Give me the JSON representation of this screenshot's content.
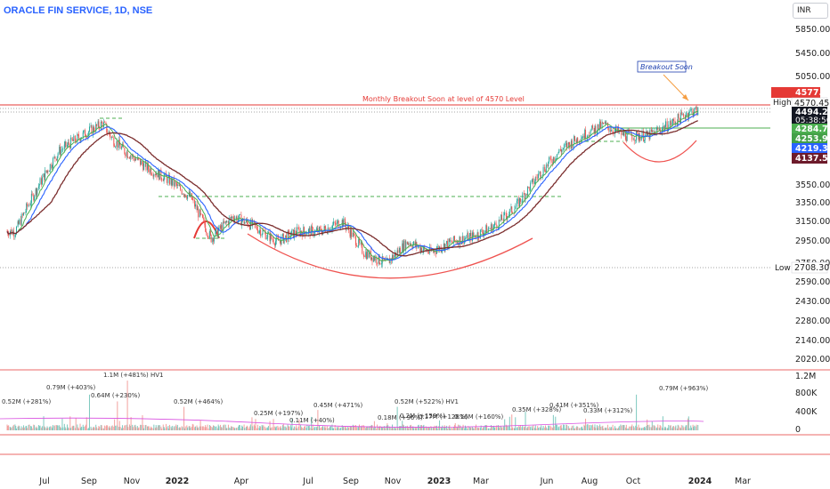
{
  "header": {
    "title": "ORACLE FIN SERVICE, 1D, NSE",
    "currency": "INR"
  },
  "price_axis_labels": [
    "5850.00",
    "5450.00",
    "5050.00",
    "3550.00",
    "3350.00",
    "3150.00",
    "2950.00",
    "2750.00",
    "2590.00",
    "2430.00",
    "2280.00",
    "2140.00",
    "2020.00"
  ],
  "volume_axis_labels": [
    "1.2M",
    "800K",
    "400K",
    "0"
  ],
  "time_axis_labels": [
    "Jul",
    "Sep",
    "Nov",
    "2022",
    "Apr",
    "Jul",
    "Sep",
    "Nov",
    "2023",
    "Mar",
    "Jun",
    "Aug",
    "Oct",
    "2024",
    "Mar"
  ],
  "tags": {
    "t1": "4577.05",
    "high_label": "High",
    "high_value": "4570.45",
    "last_price": "4494.25",
    "countdown": "05:38:56",
    "ma1": "4284.75",
    "ma2": "4253.95",
    "ma3": "4219.30",
    "ma4": "4137.57",
    "low_label": "Low",
    "low_value": "2708.30"
  },
  "annotations": {
    "breakout_line": "Monthly Breakout Soon at level of 4570 Level",
    "breakout_box": "Breakout Soon"
  },
  "volume_labels": [
    "0.52M (+281%)",
    "0.79M (+403%)",
    "1.1M (+481%) HV1",
    "0.64M (+230%)",
    "0.52M (+464%)",
    "0.25M (+197%)",
    "0.11M (+40%)",
    "0.45M (+471%)",
    "0.52M (+522%) HV1",
    "0.18M (+96%)",
    "0.2M (+159%)",
    "0.17M (+128%)",
    "0.16M (+160%)",
    "0.35M (+328%)",
    "0.41M (+351%)",
    "0.33M (+312%)",
    "0.79M (+963%)"
  ],
  "colors": {
    "up": "#26a69a",
    "down": "#ef5350",
    "ma_fast": "#4caf50",
    "ma_mid": "#2962ff",
    "ma_slow": "#7b2d2d",
    "accent": "#2962ff"
  },
  "chart_data": {
    "type": "candlestick",
    "title": "ORACLE FIN SERVICE, 1D, NSE",
    "x_range": [
      "2021-06",
      "2024-03"
    ],
    "y_scale": "log",
    "ylim": [
      2020,
      5850
    ],
    "series": [
      {
        "name": "price",
        "points": [
          [
            "2021-06-01",
            3050
          ],
          [
            "2021-07-01",
            3500
          ],
          [
            "2021-08-01",
            3950
          ],
          [
            "2021-09-01",
            4150
          ],
          [
            "2021-10-01",
            4320
          ],
          [
            "2021-10-15",
            4100
          ],
          [
            "2021-11-01",
            3950
          ],
          [
            "2021-12-01",
            3750
          ],
          [
            "2022-01-01",
            3600
          ],
          [
            "2022-02-01",
            3400
          ],
          [
            "2022-03-01",
            2980
          ],
          [
            "2022-04-01",
            3200
          ],
          [
            "2022-05-01",
            3100
          ],
          [
            "2022-06-01",
            2950
          ],
          [
            "2022-07-01",
            3050
          ],
          [
            "2022-08-01",
            3050
          ],
          [
            "2022-09-01",
            3150
          ],
          [
            "2022-10-01",
            2850
          ],
          [
            "2022-11-01",
            2750
          ],
          [
            "2022-12-01",
            2950
          ],
          [
            "2023-01-01",
            2850
          ],
          [
            "2023-02-01",
            2950
          ],
          [
            "2023-03-01",
            3000
          ],
          [
            "2023-04-01",
            3100
          ],
          [
            "2023-05-01",
            3300
          ],
          [
            "2023-06-01",
            3650
          ],
          [
            "2023-07-01",
            3950
          ],
          [
            "2023-08-01",
            4150
          ],
          [
            "2023-09-01",
            4300
          ],
          [
            "2023-10-01",
            4150
          ],
          [
            "2023-11-01",
            4150
          ],
          [
            "2023-12-01",
            4300
          ],
          [
            "2024-01-01",
            4494
          ]
        ]
      }
    ],
    "levels": {
      "high": 4570.45,
      "low": 2708.3,
      "breakout": 4570
    }
  }
}
